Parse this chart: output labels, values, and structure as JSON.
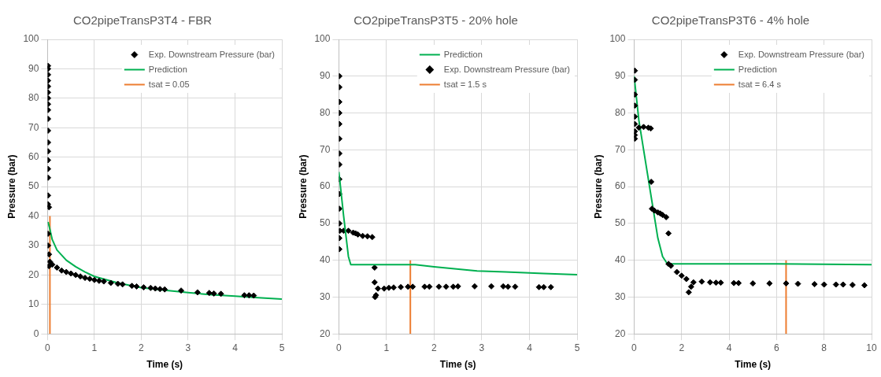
{
  "chart_data": [
    {
      "type": "scatter",
      "title": "CO2pipeTransP3T4 - FBR",
      "xlabel": "Time (s)",
      "ylabel": "Pressure (bar)",
      "xlim": [
        0,
        5
      ],
      "xticks": [
        0,
        1,
        2,
        3,
        4,
        5
      ],
      "ylim": [
        0,
        100
      ],
      "yticks": [
        0,
        10,
        20,
        30,
        40,
        50,
        60,
        70,
        80,
        90,
        100
      ],
      "grid": true,
      "legend": "top right",
      "series": [
        {
          "name": "Exp. Downstream Pressure (bar)",
          "marker": "diamond",
          "color": "#000000",
          "x": [
            0.01,
            0.01,
            0.01,
            0.01,
            0.01,
            0.01,
            0.01,
            0.01,
            0.01,
            0.01,
            0.01,
            0.01,
            0.01,
            0.01,
            0.01,
            0.01,
            0.01,
            0.01,
            0.01,
            0.01,
            0.03,
            0.03,
            0.03,
            0.05,
            0.1,
            0.2,
            0.3,
            0.4,
            0.5,
            0.6,
            0.7,
            0.8,
            0.9,
            1.0,
            1.1,
            1.2,
            1.35,
            1.5,
            1.6,
            1.8,
            1.9,
            2.05,
            2.2,
            2.3,
            2.4,
            2.5,
            2.85,
            3.2,
            3.45,
            3.55,
            3.7,
            4.2,
            4.3,
            4.4
          ],
          "values": [
            91,
            90,
            88,
            86,
            84,
            82,
            80,
            78,
            76,
            73,
            69,
            65,
            62,
            59,
            56,
            53,
            47,
            44,
            34,
            30,
            43,
            27,
            23,
            24.5,
            23.5,
            22.5,
            21.5,
            21,
            20.5,
            20,
            19.5,
            19,
            18.7,
            18.3,
            18,
            17.8,
            17.3,
            17,
            16.8,
            16.3,
            16.1,
            15.8,
            15.6,
            15.4,
            15.2,
            15.1,
            14.7,
            14.1,
            13.9,
            13.7,
            13.6,
            13.1,
            13.1,
            13
          ]
        },
        {
          "name": "Prediction",
          "type": "line",
          "color": "#00b050",
          "x": [
            0.01,
            0.05,
            0.1,
            0.2,
            0.4,
            0.6,
            0.8,
            1,
            1.5,
            2,
            2.5,
            3,
            3.5,
            4,
            4.5,
            5
          ],
          "values": [
            38,
            35.5,
            32,
            28.5,
            25,
            22.8,
            21,
            19.5,
            17.3,
            15.7,
            14.8,
            14,
            13.3,
            12.8,
            12.3,
            11.8
          ]
        },
        {
          "name": "tsat = 0.05",
          "type": "line",
          "color": "#ed7d31",
          "x": [
            0.05,
            0.05
          ],
          "values": [
            0,
            40
          ]
        }
      ]
    },
    {
      "type": "scatter",
      "title": "CO2pipeTransP3T5 - 20% hole",
      "xlabel": "Time (s)",
      "ylabel": "Pressure (bar)",
      "xlim": [
        0,
        5
      ],
      "xticks": [
        0,
        1,
        2,
        3,
        4,
        5
      ],
      "ylim": [
        20,
        100
      ],
      "yticks": [
        20,
        30,
        40,
        50,
        60,
        70,
        80,
        90,
        100
      ],
      "grid": true,
      "legend": "top right",
      "series": [
        {
          "name": "Prediction",
          "type": "line",
          "color": "#00b050",
          "x": [
            0,
            0.1,
            0.2,
            0.25,
            1.6,
            2,
            2.9,
            3.5,
            4.3,
            5
          ],
          "values": [
            64,
            52,
            41,
            38.8,
            38.8,
            38.2,
            37.1,
            36.8,
            36.4,
            36.1
          ]
        },
        {
          "name": "Exp. Downstream Pressure (bar)",
          "marker": "diamond",
          "color": "#000000",
          "x": [
            0.01,
            0.01,
            0.01,
            0.01,
            0.01,
            0.01,
            0.01,
            0.01,
            0.01,
            0.01,
            0.01,
            0.01,
            0.01,
            0.01,
            0.02,
            0.1,
            0.2,
            0.3,
            0.35,
            0.4,
            0.5,
            0.6,
            0.7,
            0.75,
            0.75,
            0.76,
            0.78,
            0.82,
            0.95,
            1.05,
            1.15,
            1.3,
            1.45,
            1.55,
            1.8,
            1.9,
            2.1,
            2.25,
            2.4,
            2.5,
            2.85,
            3.2,
            3.45,
            3.55,
            3.7,
            4.2,
            4.3,
            4.45
          ],
          "values": [
            90,
            87,
            83,
            80,
            77,
            73,
            69,
            66,
            62,
            58,
            54,
            50,
            46,
            43,
            48,
            48,
            48,
            47.5,
            47.3,
            47,
            46.6,
            46.5,
            46.3,
            38,
            34,
            30,
            30.5,
            32.3,
            32.3,
            32.5,
            32.6,
            32.7,
            32.8,
            32.8,
            32.8,
            32.8,
            32.8,
            32.8,
            32.8,
            32.9,
            32.9,
            32.9,
            32.9,
            32.8,
            32.8,
            32.7,
            32.7,
            32.7
          ]
        },
        {
          "name": "tsat = 1.5 s",
          "type": "line",
          "color": "#ed7d31",
          "x": [
            1.5,
            1.5
          ],
          "values": [
            20,
            40
          ]
        }
      ]
    },
    {
      "type": "scatter",
      "title": "CO2pipeTransP3T6 - 4% hole",
      "xlabel": "Time (s)",
      "ylabel": "Pressure (bar)",
      "xlim": [
        0,
        10
      ],
      "xticks": [
        0,
        2,
        4,
        6,
        8,
        10
      ],
      "ylim": [
        20,
        100
      ],
      "yticks": [
        20,
        30,
        40,
        50,
        60,
        70,
        80,
        90,
        100
      ],
      "grid": true,
      "legend": "top right",
      "series": [
        {
          "name": "Exp. Downstream Pressure (bar)",
          "marker": "diamond",
          "color": "#000000",
          "x": [
            0.03,
            0.03,
            0.03,
            0.03,
            0.03,
            0.03,
            0.03,
            0.03,
            0.03,
            0.2,
            0.4,
            0.6,
            0.7,
            0.72,
            0.75,
            0.85,
            1.0,
            1.1,
            1.2,
            1.35,
            1.45,
            1.45,
            1.55,
            1.8,
            2.0,
            2.2,
            2.3,
            2.4,
            2.5,
            2.85,
            3.2,
            3.45,
            3.65,
            4.2,
            4.4,
            5.0,
            5.7,
            6.4,
            6.9,
            7.6,
            8.0,
            8.5,
            8.8,
            9.2,
            9.7
          ],
          "values": [
            91.5,
            89,
            85,
            82,
            79,
            77,
            75,
            74,
            73,
            76,
            76.2,
            76,
            75.8,
            61.3,
            54,
            53.5,
            53,
            52.7,
            52.3,
            51.7,
            47.3,
            39,
            38.5,
            36.8,
            35.8,
            34.9,
            31.3,
            32.8,
            34,
            34.2,
            34,
            33.9,
            33.9,
            33.8,
            33.8,
            33.7,
            33.7,
            33.7,
            33.6,
            33.5,
            33.4,
            33.4,
            33.4,
            33.3,
            33.2
          ]
        },
        {
          "name": "Prediction",
          "type": "line",
          "color": "#00b050",
          "x": [
            0,
            0.2,
            0.5,
            0.8,
            1.0,
            1.2,
            1.4,
            6,
            10
          ],
          "values": [
            90,
            78,
            66,
            54,
            46,
            41,
            39,
            39,
            38.8
          ]
        },
        {
          "name": "tsat = 6.4 s",
          "type": "line",
          "color": "#ed7d31",
          "x": [
            6.4,
            6.4
          ],
          "values": [
            20,
            40
          ]
        }
      ]
    }
  ]
}
